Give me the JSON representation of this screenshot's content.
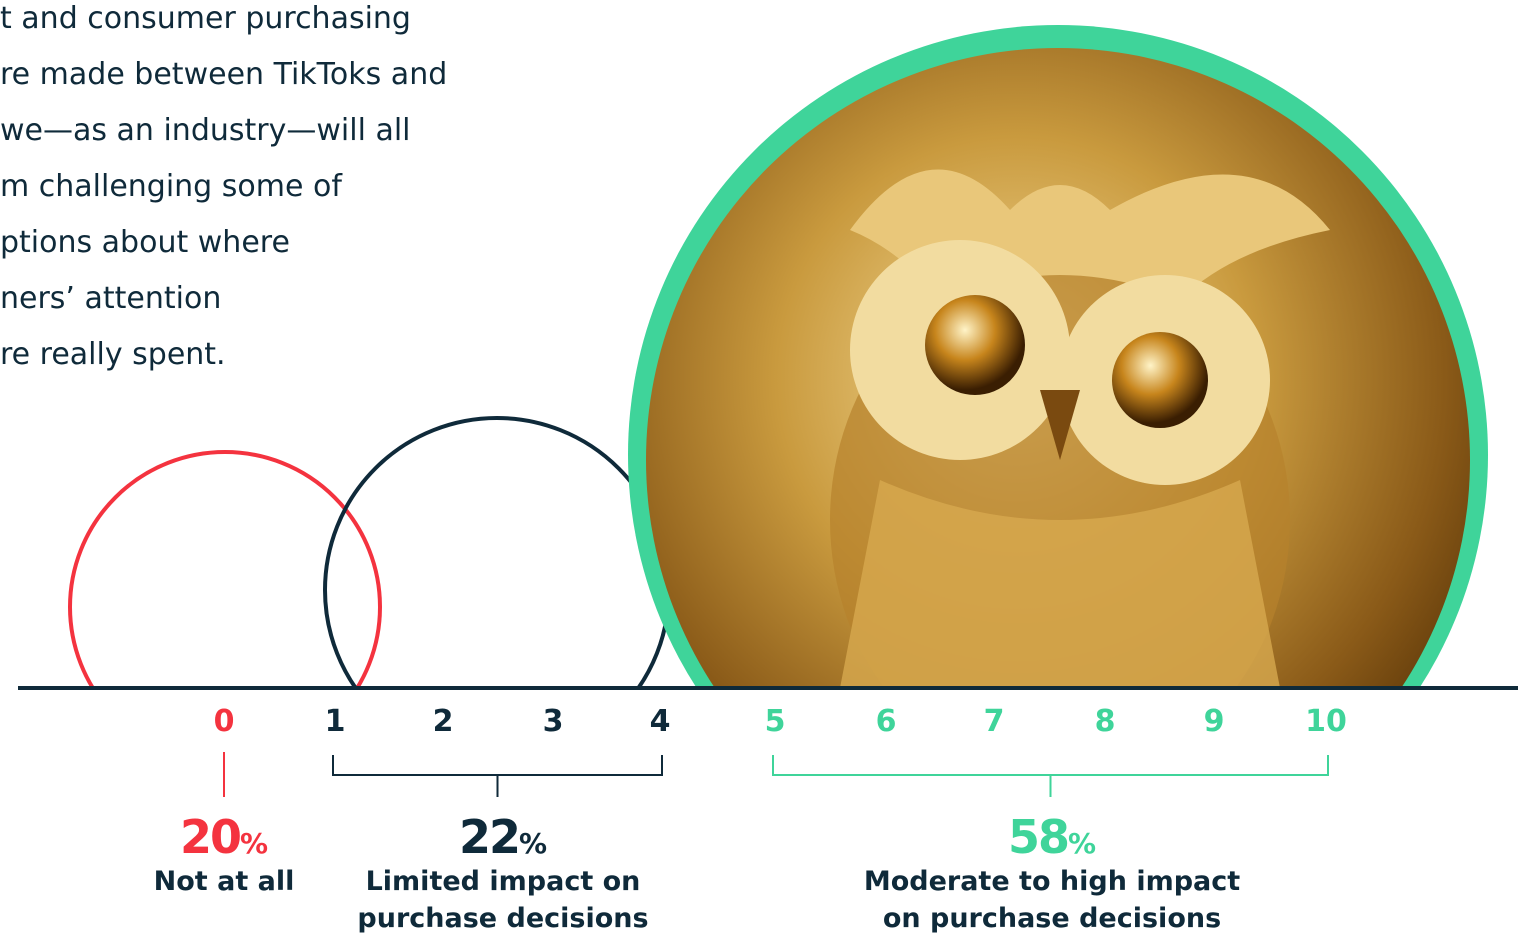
{
  "intro_lines": [
    "t and consumer purchasing",
    "re made between TikToks and",
    "we—as an industry—will all",
    "m challenging some of",
    "ptions about where",
    "ners’ attention",
    "re really spent."
  ],
  "scale": [
    "0",
    "1",
    "2",
    "3",
    "4",
    "5",
    "6",
    "7",
    "8",
    "9",
    "10"
  ],
  "percent_sign": "%",
  "groups": [
    {
      "value": "20",
      "label_lines": [
        "Not at all"
      ],
      "color": "#f4333f",
      "from": 0,
      "to": 0
    },
    {
      "value": "22",
      "label_lines": [
        "Limited impact on",
        "purchase decisions"
      ],
      "color": "#0f2a3a",
      "from": 1,
      "to": 4
    },
    {
      "value": "58",
      "label_lines": [
        "Moderate to high impact",
        "on purchase decisions"
      ],
      "color": "#3fd49a",
      "from": 5,
      "to": 10
    }
  ]
}
